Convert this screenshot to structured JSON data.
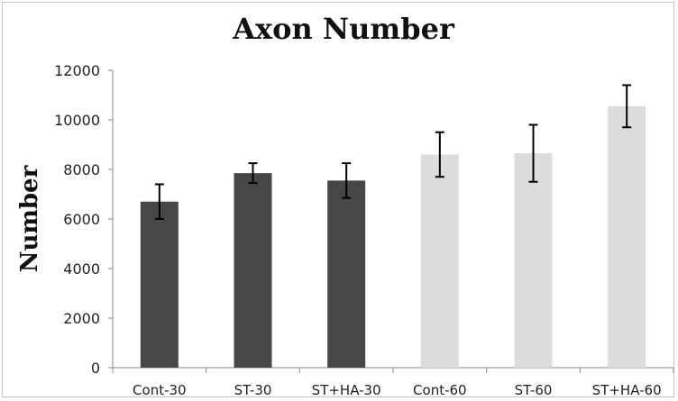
{
  "chart_data": {
    "type": "bar",
    "title": "Axon Number",
    "xlabel": "",
    "ylabel": "Number",
    "ylim": [
      0,
      12000
    ],
    "yticks": [
      0,
      2000,
      4000,
      6000,
      8000,
      10000,
      12000
    ],
    "ytick_labels": [
      "0",
      "2000",
      "4000",
      "6000",
      "8000",
      "10000",
      "12000"
    ],
    "grid": false,
    "legend": "none",
    "categories": [
      "Cont-30",
      "ST-30",
      "ST+HA-30",
      "Cont-60",
      "ST-60",
      "ST+HA-60"
    ],
    "values": [
      6700,
      7850,
      7550,
      8600,
      8650,
      10550
    ],
    "errors": [
      700,
      400,
      700,
      900,
      1150,
      850
    ],
    "bar_colors": [
      "#474747",
      "#474747",
      "#474747",
      "#dcdcdc",
      "#dcdcdc",
      "#dcdcdc"
    ]
  }
}
